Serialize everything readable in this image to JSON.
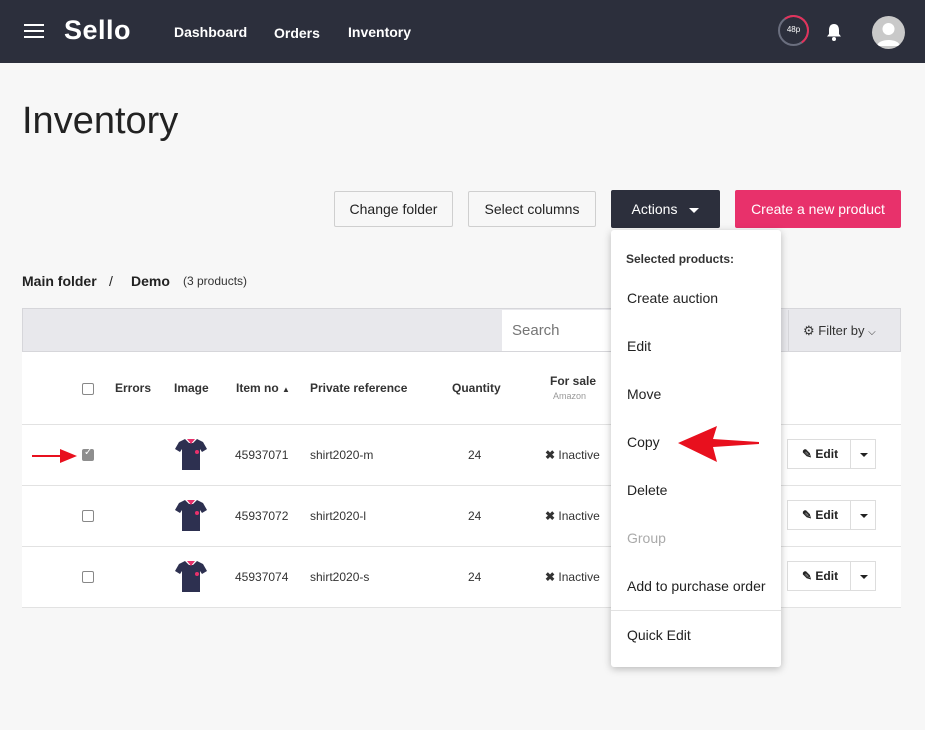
{
  "app": {
    "name": "Sello"
  },
  "nav": {
    "links": [
      "Dashboard",
      "Orders",
      "Inventory"
    ],
    "usage_badge": "48p"
  },
  "page": {
    "title": "Inventory"
  },
  "toolbar": {
    "change_folder": "Change folder",
    "select_columns": "Select columns",
    "actions": "Actions",
    "create_product": "Create a new product"
  },
  "breadcrumb": {
    "root": "Main folder",
    "separator": "/",
    "current": "Demo",
    "count": "(3 products)"
  },
  "search": {
    "placeholder": "Search",
    "filter_label": "Filter by"
  },
  "table": {
    "headers": {
      "errors": "Errors",
      "image": "Image",
      "item_no": "Item no",
      "private_ref": "Private reference",
      "quantity": "Quantity",
      "for_sale": "For sale",
      "for_sale_sub": "Amazon"
    },
    "rows": [
      {
        "item_no": "45937071",
        "private_ref": "shirt2020-m",
        "quantity": "24",
        "status": "Inactive",
        "edit": "Edit",
        "checked": true
      },
      {
        "item_no": "45937072",
        "private_ref": "shirt2020-l",
        "quantity": "24",
        "status": "Inactive",
        "edit": "Edit",
        "checked": false
      },
      {
        "item_no": "45937074",
        "private_ref": "shirt2020-s",
        "quantity": "24",
        "status": "Inactive",
        "edit": "Edit",
        "checked": false
      }
    ]
  },
  "actions_menu": {
    "header": "Selected products:",
    "items": [
      "Create auction",
      "Edit",
      "Move",
      "Copy",
      "Delete",
      "Group",
      "Add to purchase order",
      "Quick Edit"
    ],
    "disabled": [
      "Group"
    ]
  },
  "colors": {
    "topbar": "#2c2f3c",
    "accent": "#e8316b",
    "annotation_arrow": "#e8101e"
  }
}
